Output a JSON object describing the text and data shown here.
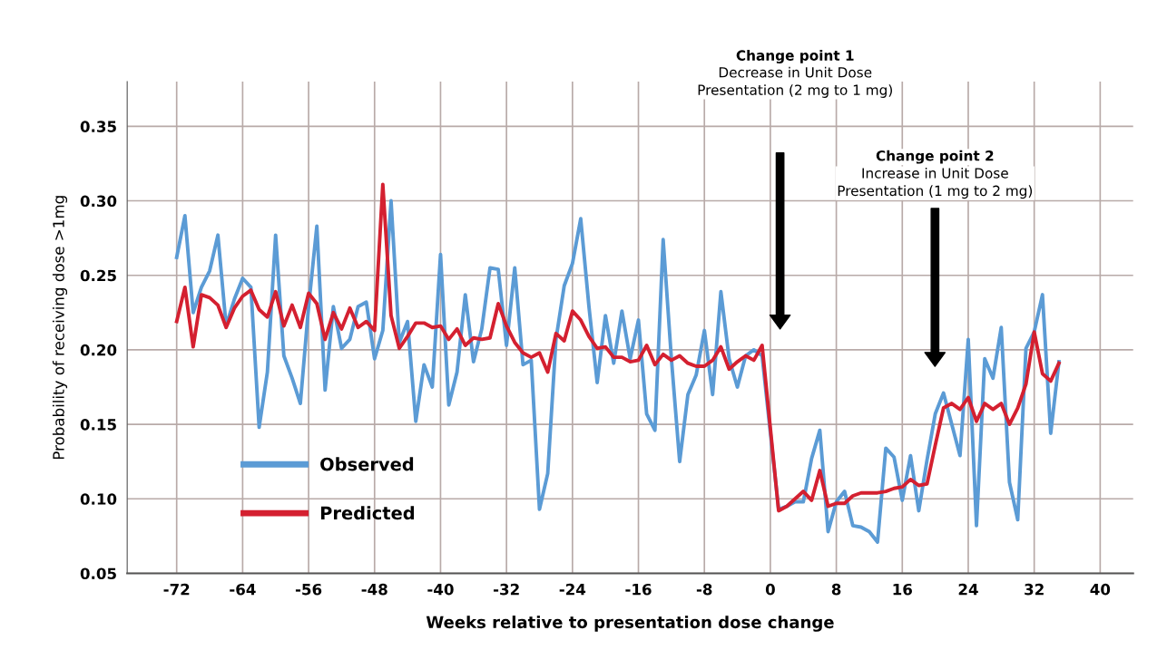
{
  "chart_data": {
    "type": "line",
    "xlabel": "Weeks relative to presentation dose change",
    "ylabel": "Probability of receiving dose >1mg",
    "xlim": [
      -78,
      44
    ],
    "ylim": [
      0.05,
      0.38
    ],
    "xticks": [
      -72,
      -64,
      -56,
      -48,
      -40,
      -32,
      -24,
      -16,
      -8,
      0,
      8,
      16,
      24,
      32,
      40
    ],
    "yticks": [
      {
        "value": 0.05,
        "label": "0.05"
      },
      {
        "value": 0.1,
        "label": "0.10"
      },
      {
        "value": 0.15,
        "label": "0.15"
      },
      {
        "value": 0.2,
        "label": "0.20"
      },
      {
        "value": 0.25,
        "label": "0.25"
      },
      {
        "value": 0.3,
        "label": "0.30"
      },
      {
        "value": 0.35,
        "label": "0.35"
      }
    ],
    "grid": true,
    "legend": "bottom left",
    "line_style": "solid",
    "marker": "none",
    "series": [
      {
        "name": "Observed",
        "color": "#5b9bd5",
        "x": [
          -72,
          -71,
          -70,
          -69,
          -68,
          -67,
          -66,
          -65,
          -64,
          -63,
          -62,
          -61,
          -60,
          -59,
          -58,
          -57,
          -56,
          -55,
          -54,
          -53,
          -52,
          -51,
          -50,
          -49,
          -48,
          -47,
          -46,
          -45,
          -44,
          -43,
          -42,
          -41,
          -40,
          -39,
          -38,
          -37,
          -36,
          -35,
          -34,
          -33,
          -32,
          -31,
          -30,
          -29,
          -28,
          -27,
          -26,
          -25,
          -24,
          -23,
          -22,
          -21,
          -20,
          -19,
          -18,
          -17,
          -16,
          -15,
          -14,
          -13,
          -12,
          -11,
          -10,
          -9,
          -8,
          -7,
          -6,
          -5,
          -4,
          -3,
          -2,
          -1,
          1,
          2,
          3,
          4,
          5,
          6,
          7,
          8,
          9,
          10,
          11,
          12,
          13,
          14,
          15,
          16,
          17,
          18,
          19,
          20,
          21,
          22,
          23,
          24,
          25,
          26,
          27,
          28,
          29,
          30,
          31,
          32,
          33,
          34,
          35
        ],
        "values": [
          0.262,
          0.29,
          0.225,
          0.242,
          0.253,
          0.277,
          0.216,
          0.234,
          0.248,
          0.242,
          0.148,
          0.185,
          0.277,
          0.196,
          0.181,
          0.164,
          0.229,
          0.283,
          0.173,
          0.229,
          0.201,
          0.207,
          0.229,
          0.232,
          0.194,
          0.213,
          0.3,
          0.205,
          0.219,
          0.152,
          0.19,
          0.175,
          0.264,
          0.163,
          0.185,
          0.237,
          0.192,
          0.214,
          0.255,
          0.254,
          0.203,
          0.255,
          0.19,
          0.193,
          0.093,
          0.117,
          0.207,
          0.243,
          0.258,
          0.288,
          0.229,
          0.178,
          0.223,
          0.191,
          0.226,
          0.194,
          0.22,
          0.157,
          0.146,
          0.274,
          0.194,
          0.125,
          0.17,
          0.183,
          0.213,
          0.17,
          0.239,
          0.194,
          0.175,
          0.196,
          0.2,
          0.196,
          0.093,
          0.095,
          0.098,
          0.098,
          0.127,
          0.146,
          0.078,
          0.098,
          0.105,
          0.082,
          0.081,
          0.078,
          0.071,
          0.134,
          0.128,
          0.099,
          0.129,
          0.092,
          0.126,
          0.157,
          0.171,
          0.15,
          0.129,
          0.207,
          0.082,
          0.194,
          0.181,
          0.215,
          0.111,
          0.086,
          0.201,
          0.212,
          0.237,
          0.144,
          0.192
        ]
      },
      {
        "name": "Predicted",
        "color": "#d42030",
        "x": [
          -72,
          -71,
          -70,
          -69,
          -68,
          -67,
          -66,
          -65,
          -64,
          -63,
          -62,
          -61,
          -60,
          -59,
          -58,
          -57,
          -56,
          -55,
          -54,
          -53,
          -52,
          -51,
          -50,
          -49,
          -48,
          -47,
          -46,
          -45,
          -44,
          -43,
          -42,
          -41,
          -40,
          -39,
          -38,
          -37,
          -36,
          -35,
          -34,
          -33,
          -32,
          -31,
          -30,
          -29,
          -28,
          -27,
          -26,
          -25,
          -24,
          -23,
          -22,
          -21,
          -20,
          -19,
          -18,
          -17,
          -16,
          -15,
          -14,
          -13,
          -12,
          -11,
          -10,
          -9,
          -8,
          -7,
          -6,
          -5,
          -4,
          -3,
          -2,
          -1,
          1,
          2,
          3,
          4,
          5,
          6,
          7,
          8,
          9,
          10,
          11,
          12,
          13,
          14,
          15,
          16,
          17,
          18,
          19,
          20,
          21,
          22,
          23,
          24,
          25,
          26,
          27,
          28,
          29,
          30,
          31,
          32,
          33,
          34,
          35
        ],
        "values": [
          0.219,
          0.242,
          0.202,
          0.237,
          0.235,
          0.23,
          0.215,
          0.228,
          0.236,
          0.24,
          0.227,
          0.222,
          0.239,
          0.216,
          0.23,
          0.215,
          0.238,
          0.231,
          0.207,
          0.225,
          0.214,
          0.228,
          0.215,
          0.219,
          0.213,
          0.311,
          0.223,
          0.201,
          0.209,
          0.218,
          0.218,
          0.215,
          0.216,
          0.207,
          0.214,
          0.203,
          0.208,
          0.207,
          0.208,
          0.231,
          0.216,
          0.205,
          0.198,
          0.195,
          0.198,
          0.185,
          0.211,
          0.206,
          0.226,
          0.22,
          0.209,
          0.201,
          0.202,
          0.195,
          0.195,
          0.192,
          0.193,
          0.203,
          0.19,
          0.197,
          0.193,
          0.196,
          0.191,
          0.189,
          0.189,
          0.193,
          0.202,
          0.187,
          0.192,
          0.196,
          0.193,
          0.203,
          0.092,
          0.095,
          0.1,
          0.105,
          0.099,
          0.119,
          0.095,
          0.097,
          0.097,
          0.102,
          0.104,
          0.104,
          0.104,
          0.105,
          0.107,
          0.108,
          0.113,
          0.109,
          0.11,
          0.136,
          0.161,
          0.164,
          0.16,
          0.168,
          0.152,
          0.164,
          0.16,
          0.164,
          0.15,
          0.161,
          0.177,
          0.212,
          0.184,
          0.179,
          0.191
        ]
      }
    ],
    "annotations": [
      "Change point 1",
      "Decrease in Unit Dose\nPresentation (2 mg to 1 mg)",
      "Change point 2",
      "Increase in Unit Dose\nPresentation (1 mg to 2 mg)"
    ]
  }
}
